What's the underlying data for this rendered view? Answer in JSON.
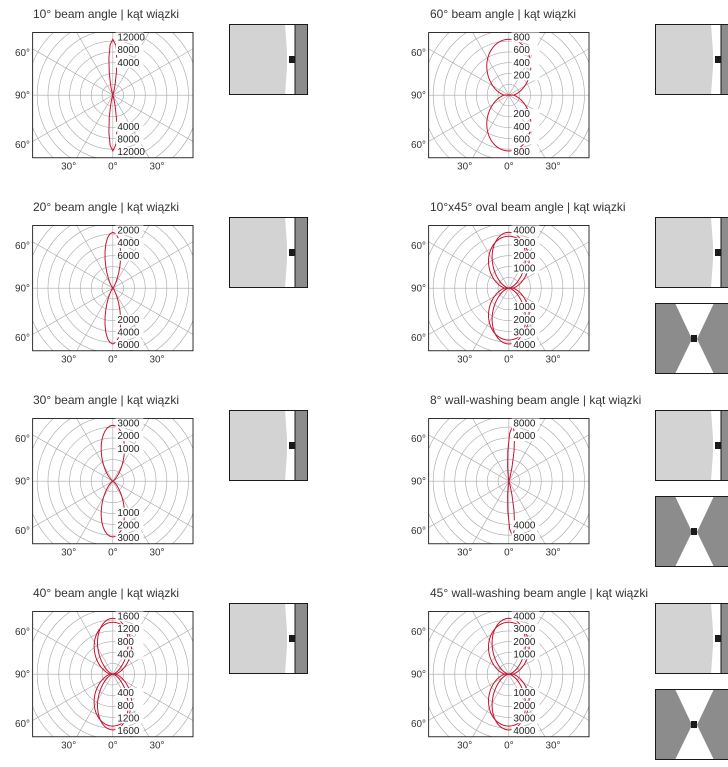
{
  "angle_labels": {
    "top": "60°",
    "middle": "90°",
    "bottom": "60°",
    "left": "30°",
    "center": "0°",
    "right": "30°"
  },
  "colors": {
    "grid": "#aaaaaa",
    "curve": "#c8102e",
    "light_gray": "#d3d3d3",
    "dark_gray": "#8c8c8c",
    "frame": "#1a1a1a"
  },
  "chart_data": [
    {
      "type": "polar",
      "title": "10° beam angle | kąt wiązki",
      "ticks_upper": [
        "12000",
        "8000",
        "4000"
      ],
      "ticks_lower": [
        "4000",
        "8000",
        "12000"
      ],
      "half_beam_deg": 5,
      "curves": 1,
      "offset_deg": 0,
      "icons": [
        "wall-washer"
      ]
    },
    {
      "type": "polar",
      "title": "60° beam angle | kąt wiązki",
      "ticks_upper": [
        "800",
        "600",
        "400",
        "200"
      ],
      "ticks_lower": [
        "200",
        "400",
        "600",
        "800"
      ],
      "half_beam_deg": 30,
      "curves": 1,
      "offset_deg": 0,
      "icons": [
        "wall-washer"
      ]
    },
    {
      "type": "polar",
      "title": "20° beam angle | kąt wiązki",
      "ticks_upper": [
        "2000",
        "4000",
        "6000"
      ],
      "ticks_lower": [
        "2000",
        "4000",
        "6000"
      ],
      "half_beam_deg": 10,
      "curves": 1,
      "offset_deg": 0,
      "icons": [
        "wall-washer"
      ]
    },
    {
      "type": "polar",
      "title": "10°x45° oval beam angle | kąt wiązki",
      "ticks_upper": [
        "4000",
        "3000",
        "2000",
        "1000"
      ],
      "ticks_lower": [
        "1000",
        "2000",
        "3000",
        "4000"
      ],
      "half_beam_deg": 22,
      "curves": 2,
      "offset_deg": 0,
      "icons": [
        "wall-washer",
        "symmetric"
      ]
    },
    {
      "type": "polar",
      "title": "30° beam angle | kąt wiązki",
      "ticks_upper": [
        "3000",
        "2000",
        "1000"
      ],
      "ticks_lower": [
        "1000",
        "2000",
        "3000"
      ],
      "half_beam_deg": 15,
      "curves": 1,
      "offset_deg": 0,
      "icons": [
        "wall-washer"
      ]
    },
    {
      "type": "polar",
      "title": "8° wall-washing beam angle | kąt wiązki",
      "ticks_upper": [
        "8000",
        "4000"
      ],
      "ticks_lower": [
        "4000",
        "8000"
      ],
      "half_beam_deg": 4,
      "curves": 1,
      "offset_deg": 4,
      "icons": [
        "wall-washer",
        "symmetric"
      ]
    },
    {
      "type": "polar",
      "title": "40° beam angle | kąt wiązki",
      "ticks_upper": [
        "1600",
        "1200",
        "800",
        "400"
      ],
      "ticks_lower": [
        "400",
        "800",
        "1200",
        "1600"
      ],
      "half_beam_deg": 20,
      "curves": 2,
      "offset_deg": 0,
      "icons": [
        "wall-washer"
      ]
    },
    {
      "type": "polar",
      "title": "45° wall-washing beam angle | kąt wiązki",
      "ticks_upper": [
        "4000",
        "3000",
        "2000",
        "1000"
      ],
      "ticks_lower": [
        "1000",
        "2000",
        "3000",
        "4000"
      ],
      "half_beam_deg": 22,
      "curves": 2,
      "offset_deg": 0,
      "icons": [
        "wall-washer",
        "symmetric"
      ]
    }
  ]
}
